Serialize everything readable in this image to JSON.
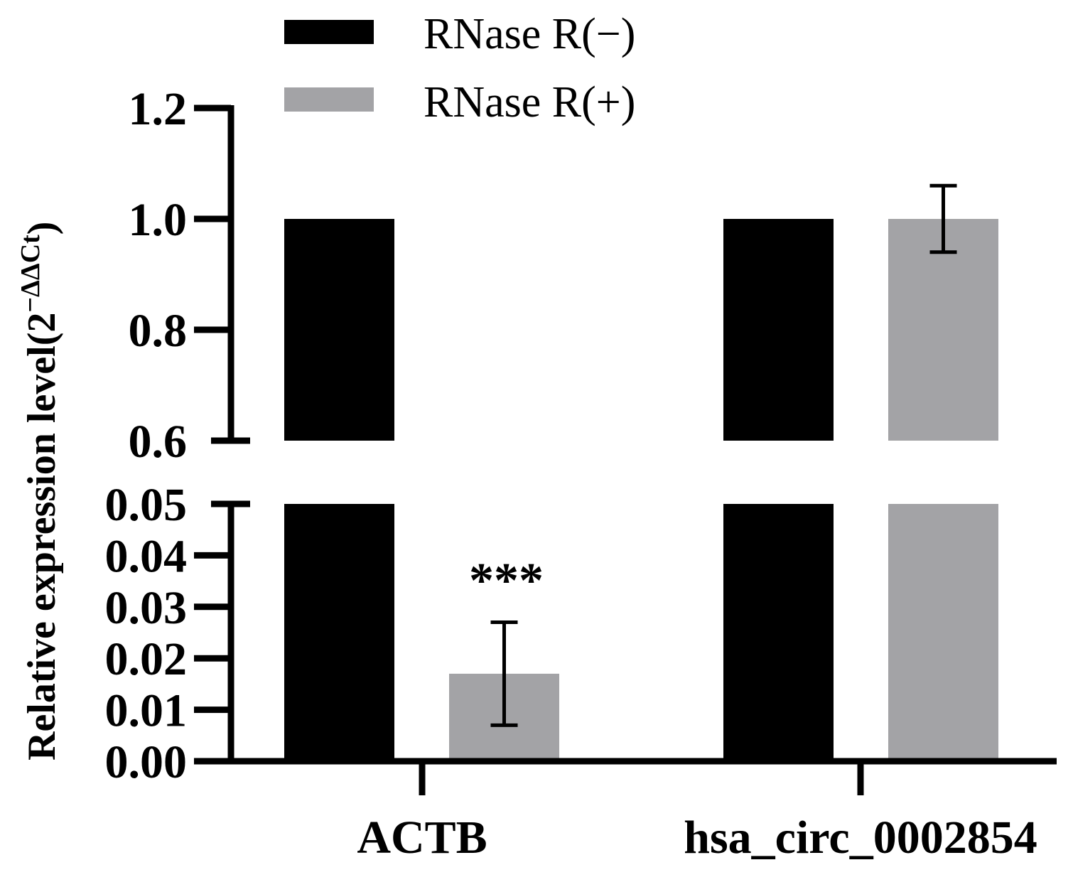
{
  "chart_data": {
    "type": "bar",
    "title": "",
    "xlabel": "",
    "ylabel": "Relative expression level(2",
    "ylabel_superscript": "−ΔΔCt",
    "ylabel_close": ")",
    "categories": [
      "ACTB",
      "hsa_circ_0002854"
    ],
    "series": [
      {
        "name": "RNase R(−)",
        "color": "#000000",
        "values": [
          1.0,
          1.0
        ],
        "errors": [
          0,
          0
        ]
      },
      {
        "name": "RNase R(+)",
        "color": "#a3a3a6",
        "values": [
          0.017,
          1.0
        ],
        "errors": [
          0.01,
          0.06
        ]
      }
    ],
    "y_axis_segments": [
      {
        "range": [
          0.6,
          1.2
        ],
        "ticks": [
          0.6,
          0.8,
          1.0,
          1.2
        ],
        "tick_labels": [
          "0.6",
          "0.8",
          "1.0",
          "1.2"
        ]
      },
      {
        "range": [
          0.0,
          0.05
        ],
        "ticks": [
          0.0,
          0.01,
          0.02,
          0.03,
          0.04,
          0.05
        ],
        "tick_labels": [
          "0.00",
          "0.01",
          "0.02",
          "0.03",
          "0.04",
          "0.05"
        ]
      }
    ],
    "annotations": [
      {
        "category": "ACTB",
        "series": "RNase R(+)",
        "text": "***"
      }
    ],
    "legend_position": "top",
    "grid": false
  }
}
